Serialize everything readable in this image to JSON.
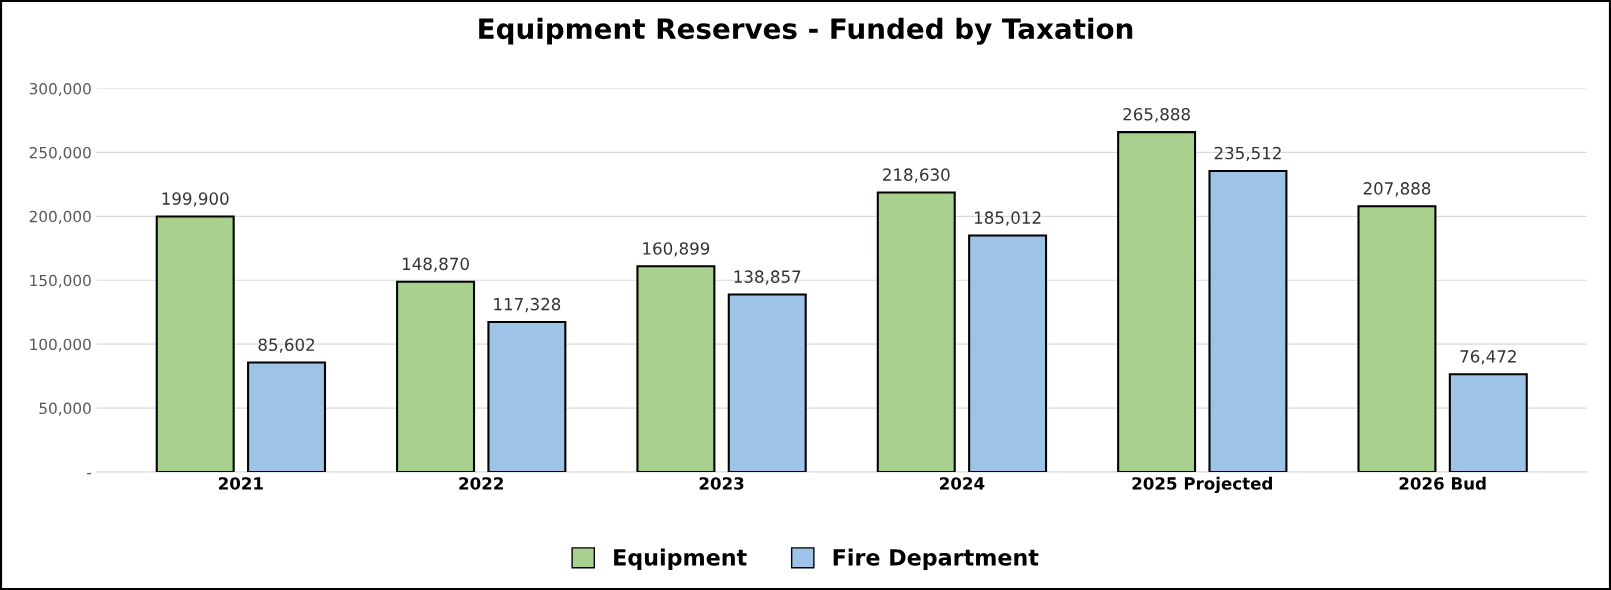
{
  "chart_data": {
    "type": "bar",
    "title": "Equipment Reserves - Funded by Taxation",
    "categories": [
      "2021",
      "2022",
      "2023",
      "2024",
      "2025 Projected",
      "2026 Bud"
    ],
    "series": [
      {
        "name": "Equipment",
        "color": "#a9d18e",
        "values": [
          199900,
          148870,
          160899,
          218630,
          265888,
          207888
        ],
        "value_labels": [
          "199,900",
          "148,870",
          "160,899",
          "218,630",
          "265,888",
          "207,888"
        ]
      },
      {
        "name": "Fire Department",
        "color": "#9dc3e6",
        "values": [
          85602,
          117328,
          138857,
          185012,
          235512,
          76472
        ],
        "value_labels": [
          "85,602",
          "117,328",
          "138,857",
          "185,012",
          "235,512",
          "76,472"
        ]
      }
    ],
    "ylim": [
      0,
      300000
    ],
    "yticks": [
      {
        "value": 0,
        "label": "-"
      },
      {
        "value": 50000,
        "label": "50,000"
      },
      {
        "value": 100000,
        "label": "100,000"
      },
      {
        "value": 150000,
        "label": "150,000"
      },
      {
        "value": 200000,
        "label": "200,000"
      },
      {
        "value": 250000,
        "label": "250,000"
      },
      {
        "value": 300000,
        "label": "300,000"
      }
    ],
    "grid": "y",
    "legend": "bottom"
  }
}
